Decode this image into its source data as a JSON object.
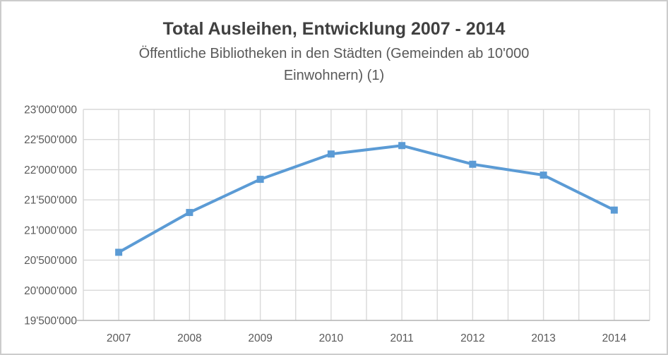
{
  "window": {
    "background": "#ffffff",
    "border_color": "#cccccc"
  },
  "chart_data": {
    "type": "line",
    "title": "Total Ausleihen, Entwicklung 2007 - 2014",
    "subtitle": "Öffentliche Bibliotheken in den Städten (Gemeinden ab 10'000 Einwohnern) (1)",
    "subtitle_lines": [
      "Öffentliche Bibliotheken in den Städten (Gemeinden ab 10'000",
      "Einwohnern) (1)"
    ],
    "categories": [
      "2007",
      "2008",
      "2009",
      "2010",
      "2011",
      "2012",
      "2013",
      "2014"
    ],
    "series": [
      {
        "values": [
          20630000,
          21290000,
          21840000,
          22260000,
          22400000,
          22090000,
          21910000,
          21330000
        ]
      }
    ],
    "xlabel": "",
    "ylabel": "",
    "ylim": [
      19500000,
      23000000
    ],
    "ytick_step": 500000,
    "ytick_labels": [
      "19'500'000",
      "20'000'000",
      "20'500'000",
      "21'000'000",
      "21'500'000",
      "22'000'000",
      "22'500'000",
      "23'000'000"
    ],
    "legend": "none",
    "grid": {
      "horizontal_major": true,
      "vertical_minor": true
    },
    "styles": {
      "line_color": "#5B9BD5",
      "marker": "square",
      "marker_size": 10,
      "line_width": 4,
      "gridline_color": "#d9d9d9",
      "axis_line_color": "#bdbdbd",
      "title_color": "#404040",
      "subtitle_color": "#595959",
      "tick_label_color": "#595959"
    }
  }
}
